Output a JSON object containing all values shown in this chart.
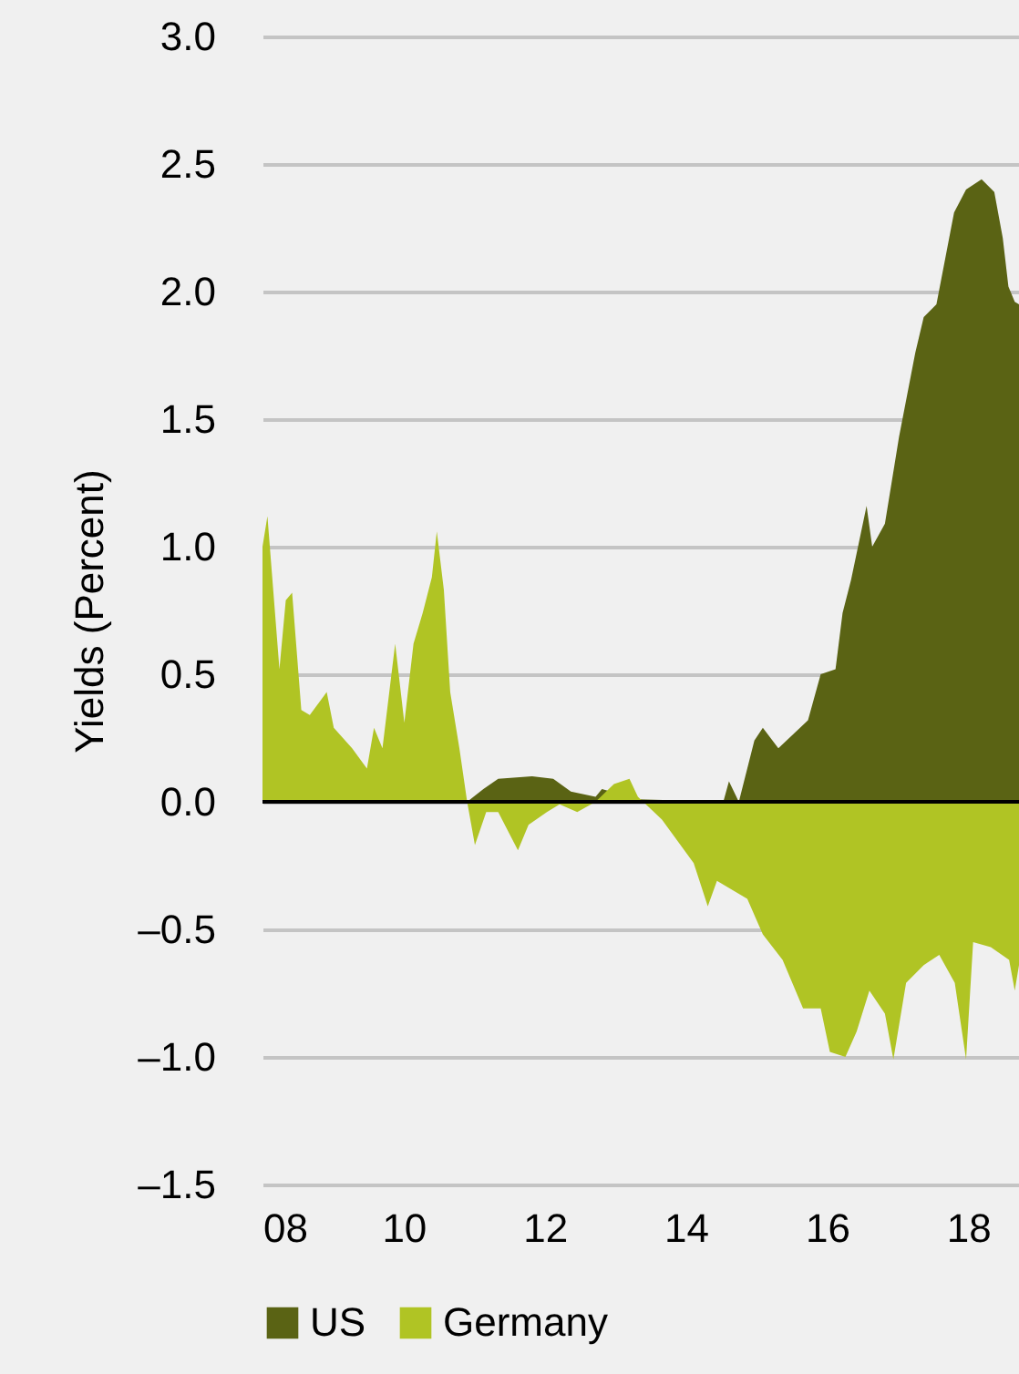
{
  "chart_data": {
    "type": "area",
    "ylabel": "Yields (Percent)",
    "legend": "bottom",
    "grid": "y",
    "xlim": [
      2008,
      2018.72
    ],
    "xticks": [
      {
        "value": 2008,
        "label": "08"
      },
      {
        "value": 2010,
        "label": "10"
      },
      {
        "value": 2012,
        "label": "12"
      },
      {
        "value": 2014,
        "label": "14"
      },
      {
        "value": 2016,
        "label": "16"
      },
      {
        "value": 2018,
        "label": "18"
      }
    ],
    "ylim": [
      -1.5,
      3.0
    ],
    "yticks": [
      {
        "value": -1.5,
        "label": "–1.5"
      },
      {
        "value": -1.0,
        "label": "–1.0"
      },
      {
        "value": -0.5,
        "label": "–0.5"
      },
      {
        "value": 0,
        "label": "0.0"
      },
      {
        "value": 0.5,
        "label": "0.5"
      },
      {
        "value": 1.0,
        "label": "1.0"
      },
      {
        "value": 1.5,
        "label": "1.5"
      },
      {
        "value": 2.0,
        "label": "2.0"
      },
      {
        "value": 2.5,
        "label": "2.5"
      },
      {
        "value": 3.0,
        "label": "3.0"
      }
    ],
    "ref_lines": [
      {
        "axis": "y",
        "value": 0,
        "color": "#000000"
      }
    ],
    "series": [
      {
        "name": "US",
        "color": "#5a6314",
        "x": [
          2010.9,
          2011.13,
          2011.34,
          2011.82,
          2012.12,
          2012.37,
          2012.72,
          2012.81,
          2013.32,
          2014.53,
          2014.61,
          2014.75,
          2014.97,
          2015.09,
          2015.31,
          2015.73,
          2015.91,
          2016.12,
          2016.22,
          2016.34,
          2016.56,
          2016.64,
          2016.82,
          2017.02,
          2017.25,
          2017.37,
          2017.55,
          2017.8,
          2017.97,
          2018.19,
          2018.37,
          2018.49,
          2018.57,
          2018.66,
          2018.72
        ],
        "values": [
          0,
          0.05,
          0.09,
          0.1,
          0.09,
          0.04,
          0.02,
          0.05,
          0.01,
          0.0,
          0.08,
          0.0,
          0.24,
          0.29,
          0.21,
          0.32,
          0.5,
          0.52,
          0.74,
          0.87,
          1.16,
          1.0,
          1.09,
          1.43,
          1.76,
          1.9,
          1.95,
          2.31,
          2.4,
          2.44,
          2.39,
          2.21,
          2.02,
          1.96,
          1.95
        ]
      },
      {
        "name": "Germany",
        "color": "#b0c424",
        "x": [
          2008.0,
          2008.07,
          2008.24,
          2008.33,
          2008.42,
          2008.55,
          2008.67,
          2008.91,
          2009.01,
          2009.27,
          2009.48,
          2009.58,
          2009.7,
          2009.88,
          2010.01,
          2010.14,
          2010.27,
          2010.4,
          2010.47,
          2010.57,
          2010.66,
          2010.79,
          2010.9,
          2011.01,
          2011.17,
          2011.34,
          2011.62,
          2011.77,
          2012.03,
          2012.21,
          2012.46,
          2012.72,
          2012.98,
          2013.2,
          2013.32,
          2013.66,
          2014.11,
          2014.31,
          2014.44,
          2014.87,
          2015.09,
          2015.37,
          2015.66,
          2015.91,
          2016.04,
          2016.26,
          2016.42,
          2016.6,
          2016.82,
          2016.94,
          2017.12,
          2017.37,
          2017.59,
          2017.81,
          2017.97,
          2018.07,
          2018.32,
          2018.58,
          2018.66,
          2018.72
        ],
        "values": [
          1.0,
          1.12,
          0.52,
          0.79,
          0.82,
          0.36,
          0.34,
          0.43,
          0.29,
          0.21,
          0.13,
          0.29,
          0.21,
          0.62,
          0.31,
          0.62,
          0.74,
          0.88,
          1.06,
          0.83,
          0.43,
          0.21,
          0,
          -0.17,
          -0.04,
          -0.04,
          -0.19,
          -0.09,
          -0.04,
          -0.01,
          -0.04,
          0,
          0.07,
          0.09,
          0.02,
          -0.07,
          -0.24,
          -0.41,
          -0.31,
          -0.38,
          -0.52,
          -0.62,
          -0.81,
          -0.81,
          -0.98,
          -1.0,
          -0.9,
          -0.74,
          -0.83,
          -1.01,
          -0.71,
          -0.64,
          -0.6,
          -0.71,
          -1.01,
          -0.55,
          -0.57,
          -0.62,
          -0.74,
          -0.64
        ]
      }
    ]
  }
}
